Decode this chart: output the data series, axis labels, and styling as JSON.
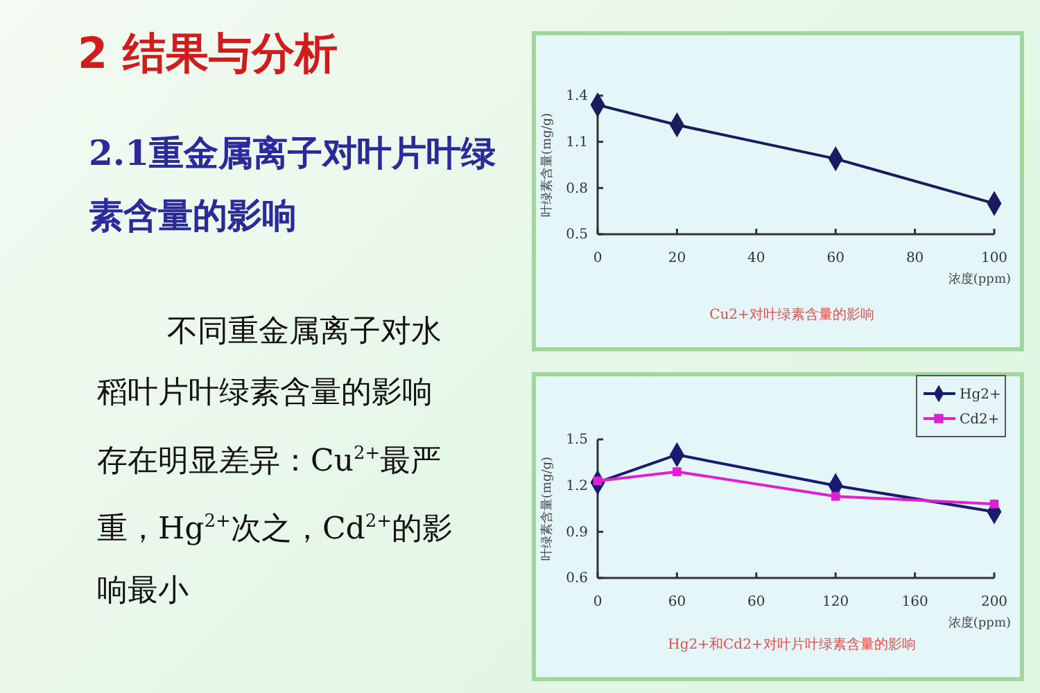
{
  "chart_data": [
    {
      "type": "other",
      "title": "2 结果与分析",
      "subtitle": "2.1重金属离子对叶片叶绿素含量的影响",
      "annotations": [
        "不同重金属离子对水稻叶片叶绿素含量的影响存在明显差异：Cu$^{2+}$最严重，Hg$^{2+}$次之，Cd$^{2+}$的影响最小"
      ]
    },
    {
      "type": "line",
      "title": "Cu2+对叶绿素含量的影响",
      "xlabel": "浓度(ppm)",
      "ylabel": "叶绿素含量(mg/g)",
      "x": [
        0,
        20,
        60,
        100
      ],
      "series": [
        {
          "color": "#1a1a5e",
          "values": [
            1.34,
            1.21,
            0.99,
            0.7
          ]
        }
      ],
      "xlim": [
        0,
        100
      ],
      "xticks": [
        0,
        20,
        40,
        60,
        80,
        100
      ],
      "ylim": [
        0.5,
        1.4
      ],
      "yticks": [
        0.5,
        0.8,
        1.1,
        1.4
      ],
      "marker": "diamond",
      "grid": false,
      "legend": false
    },
    {
      "type": "line",
      "title": "Hg2+和Cd2+对叶片叶绿素含量的影响",
      "xlabel": "浓度(ppm)",
      "ylabel": "叶绿素含量(mg/g)",
      "categories": [
        "0",
        "60",
        "60",
        "120",
        "160",
        "200"
      ],
      "series": [
        {
          "name": "Hg2+",
          "color": "#1a1a6e",
          "marker": "diamond",
          "values": [
            1.22,
            1.4,
            null,
            1.2,
            null,
            1.03
          ]
        },
        {
          "name": "Cd2+",
          "color": "#e020d0",
          "marker": "square",
          "values": [
            1.23,
            1.29,
            null,
            1.13,
            null,
            1.08
          ]
        }
      ],
      "ylim": [
        0.6,
        1.5
      ],
      "yticks": [
        0.6,
        0.9,
        1.2,
        1.5
      ],
      "grid": false,
      "legend": "top right"
    }
  ]
}
